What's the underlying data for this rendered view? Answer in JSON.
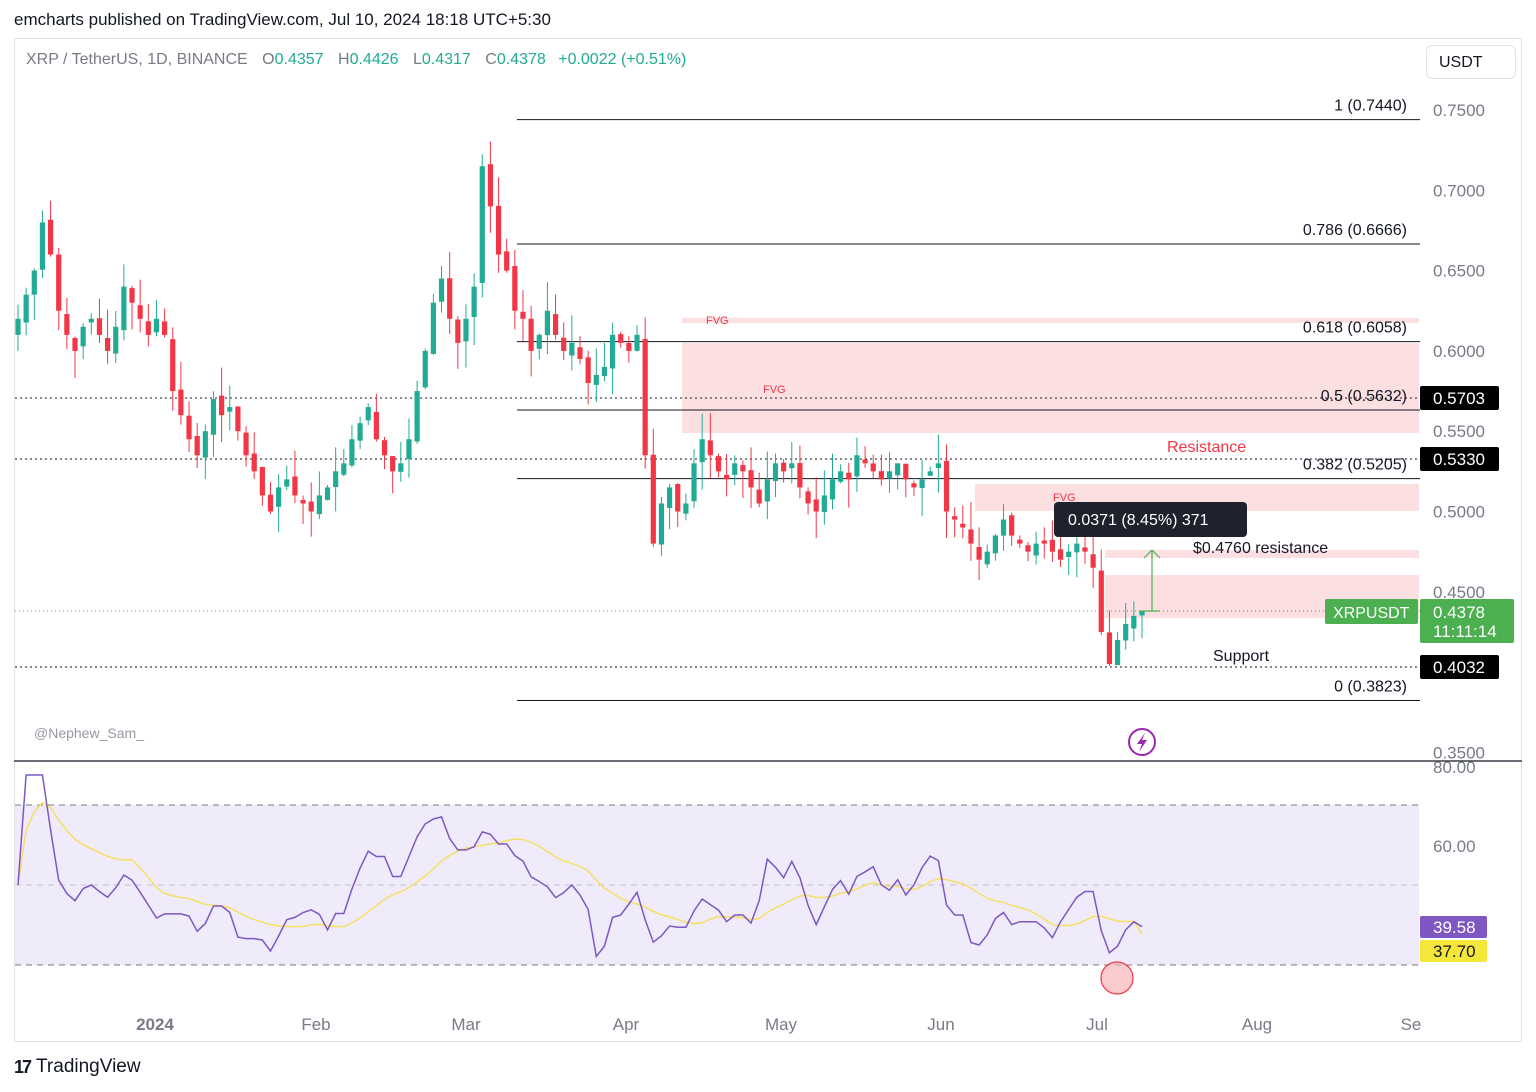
{
  "header": {
    "published": "emcharts published on TradingView.com, Jul 10, 2024 18:18 UTC+5:30"
  },
  "legend": {
    "symbol": "XRP / TetherUS, 1D, BINANCE",
    "o_label": "O",
    "o": "0.4357",
    "h_label": "H",
    "h": "0.4426",
    "l_label": "L",
    "l": "0.4317",
    "c_label": "C",
    "c": "0.4378",
    "change": "+0.0022 (+0.51%)"
  },
  "currency_button": "USDT",
  "watermark": "@Nephew_Sam_",
  "footer": {
    "logo": "17",
    "brand": "TradingView"
  },
  "colors": {
    "up": "#22ab94",
    "down": "#f23645",
    "rsi": "#7e57c2",
    "rsi_ma": "#f5e063",
    "zone": "#fcdfe1",
    "last_price": "#4caf50"
  },
  "chart_data": [
    {
      "type": "candlestick",
      "symbol": "XRPUSDT",
      "interval": "1D",
      "ylim": [
        0.35,
        0.76
      ],
      "y_ticks": [
        "0.7500",
        "0.7000",
        "0.6500",
        "0.6000",
        "0.5500",
        "0.5000",
        "0.4500",
        "0.3500"
      ],
      "x_ticks": [
        "2024",
        "Feb",
        "Mar",
        "Apr",
        "May",
        "Jun",
        "Jul",
        "Aug",
        "Se"
      ],
      "last_price": {
        "label": "XRPUSDT",
        "value": "0.4378",
        "countdown": "11:11:14"
      },
      "price_tags": [
        "0.5703",
        "0.5330",
        "0.4032"
      ],
      "fibonacci": [
        {
          "level": "1 (0.7440)",
          "value": 0.744
        },
        {
          "level": "0.786 (0.6666)",
          "value": 0.6666
        },
        {
          "level": "0.618 (0.6058)",
          "value": 0.6058
        },
        {
          "level": "0.5 (0.5632)",
          "value": 0.5632
        },
        {
          "level": "0.382 (0.5205)",
          "value": 0.5205
        },
        {
          "level": "0 (0.3823)",
          "value": 0.3823
        }
      ],
      "annotations": {
        "fvg": "FVG",
        "resistance": "Resistance",
        "resistance_level": "$0.4760 resistance",
        "support": "Support",
        "measure": "0.0371 (8.45%) 371"
      },
      "series": [
        {
          "close": [
            0.62,
            0.635,
            0.65,
            0.68,
            0.66,
            0.625,
            0.61,
            0.6,
            0.615,
            0.62,
            0.61,
            0.6,
            0.615,
            0.64,
            0.63,
            0.62,
            0.61,
            0.62,
            0.61,
            0.575,
            0.56,
            0.545,
            0.535,
            0.55,
            0.57,
            0.56,
            0.565,
            0.55,
            0.535,
            0.525,
            0.51,
            0.5,
            0.515,
            0.52,
            0.51,
            0.505,
            0.5,
            0.51,
            0.515,
            0.525,
            0.53,
            0.545,
            0.555,
            0.565,
            0.545,
            0.535,
            0.525,
            0.53,
            0.545,
            0.575,
            0.6,
            0.63,
            0.645,
            0.62,
            0.605,
            0.62,
            0.64,
            0.715,
            0.69,
            0.66,
            0.65,
            0.625,
            0.62,
            0.6,
            0.61,
            0.625,
            0.61,
            0.6,
            0.605,
            0.595,
            0.58,
            0.585,
            0.59,
            0.61,
            0.605,
            0.6,
            0.61,
            0.535,
            0.48,
            0.505,
            0.515,
            0.5,
            0.505,
            0.53,
            0.545,
            0.535,
            0.525,
            0.52,
            0.53,
            0.525,
            0.515,
            0.505,
            0.52,
            0.53,
            0.525,
            0.53,
            0.515,
            0.505,
            0.5,
            0.51,
            0.52,
            0.525,
            0.52,
            0.535,
            0.53,
            0.525,
            0.52,
            0.525,
            0.53,
            0.52,
            0.515,
            0.52,
            0.525,
            0.53,
            0.5,
            0.495,
            0.49,
            0.48,
            0.47,
            0.475,
            0.485,
            0.495,
            0.485,
            0.48,
            0.475,
            0.48,
            0.48,
            0.475,
            0.47,
            0.475,
            0.48,
            0.475,
            0.465,
            0.425,
            0.405,
            0.42,
            0.43,
            0.435,
            0.4378
          ]
        },
        {
          "name": "RSI",
          "last": "39.58",
          "ylim": [
            20,
            80
          ],
          "ticks": [
            "80.00",
            "60.00"
          ],
          "bands": [
            30,
            50,
            70
          ]
        },
        {
          "name": "RSI MA",
          "last": "37.70"
        }
      ]
    }
  ]
}
